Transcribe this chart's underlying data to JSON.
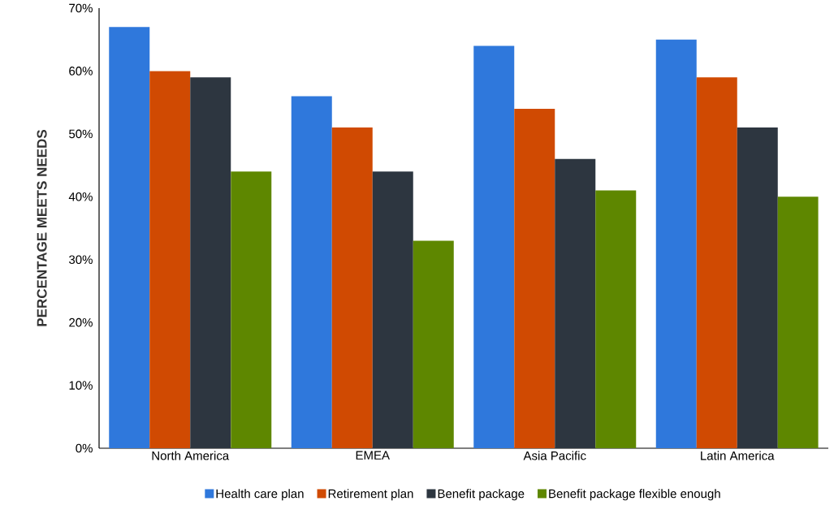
{
  "chart_data": {
    "type": "bar",
    "ylabel": "PERCENTAGE MEETS NEEDS",
    "categories": [
      "North America",
      "EMEA",
      "Asia Pacific",
      "Latin America"
    ],
    "series": [
      {
        "name": "Health care plan",
        "color": "#2f78dc",
        "values": [
          67,
          56,
          64,
          65
        ]
      },
      {
        "name": "Retirement plan",
        "color": "#d04a02",
        "values": [
          60,
          51,
          54,
          59
        ]
      },
      {
        "name": "Benefit package",
        "color": "#2d3640",
        "values": [
          59,
          44,
          46,
          51
        ]
      },
      {
        "name": "Benefit package flexible enough",
        "color": "#5e8700",
        "values": [
          44,
          33,
          41,
          40
        ]
      }
    ],
    "ylim": [
      0,
      70
    ],
    "yticks": [
      {
        "value": 0,
        "label": "0%"
      },
      {
        "value": 10,
        "label": "10%"
      },
      {
        "value": 20,
        "label": "20%"
      },
      {
        "value": 30,
        "label": "30%"
      },
      {
        "value": 40,
        "label": "40%"
      },
      {
        "value": 50,
        "label": "50%"
      },
      {
        "value": 60,
        "label": "60%"
      },
      {
        "value": 70,
        "label": "70%"
      }
    ],
    "grid": false,
    "legend": "bottom"
  }
}
